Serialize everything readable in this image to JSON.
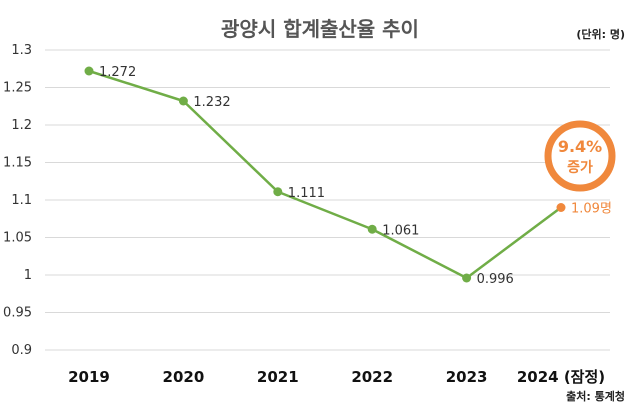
{
  "chart_data": {
    "type": "line",
    "title": "광양시 합계출산율 추이",
    "unit_note": "(단위: 명)",
    "categories": [
      "2019",
      "2020",
      "2021",
      "2022",
      "2023",
      "2024 (잠정)"
    ],
    "series": [
      {
        "values": [
          1.272,
          1.232,
          1.111,
          1.061,
          0.996,
          1.09
        ]
      }
    ],
    "data_labels": [
      "1.272",
      "1.232",
      "1.111",
      "1.061",
      "0.996",
      "1.09명"
    ],
    "ylim": [
      0.9,
      1.3
    ],
    "yticks": [
      "0.9",
      "0.95",
      "1",
      "1.05",
      "1.1",
      "1.15",
      "1.2",
      "1.25",
      "1.3"
    ],
    "grid": true,
    "line_color": "#70ad47",
    "marker_color": "#70ad47",
    "highlight_marker_color": "#f0883c",
    "callout": {
      "percent": "9.4%",
      "text": "증가",
      "color": "#f0883c"
    },
    "source": "출처: 통계청"
  }
}
